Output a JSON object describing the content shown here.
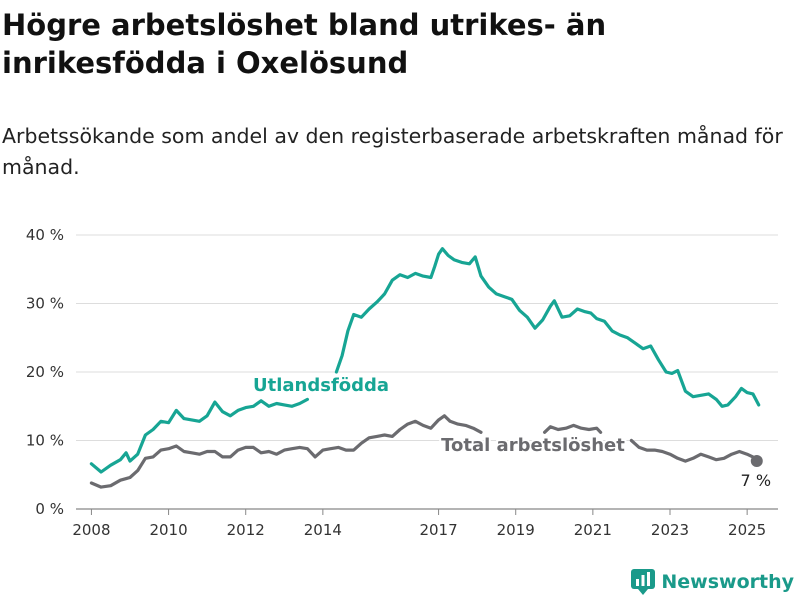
{
  "title": "Högre arbetslöshet bland utrikes- än inrikesfödda i Oxelösund",
  "subtitle": "Arbetssökande som andel av den registerbaserade arbetskraften månad för månad.",
  "brand": {
    "name": "Newsworthy",
    "color": "#1a9a8a"
  },
  "colors": {
    "utlandsfodda": "#17a594",
    "total": "#6b6b6f"
  },
  "chart_data": {
    "type": "line",
    "ylim": [
      0,
      40
    ],
    "xlim": [
      2007.6,
      2025.8
    ],
    "y_ticks": [
      0,
      10,
      20,
      30,
      40
    ],
    "y_tick_labels": [
      "0 %",
      "10 %",
      "20 %",
      "30 %",
      "40 %"
    ],
    "x_ticks": [
      2008,
      2010,
      2012,
      2014,
      2017,
      2019,
      2021,
      2023,
      2025
    ],
    "x_tick_labels": [
      "2008",
      "2010",
      "2012",
      "2014",
      "2017",
      "2019",
      "2021",
      "2023",
      "2025"
    ],
    "grid": true,
    "series": [
      {
        "name": "Utlandsfödda",
        "color": "#17a594",
        "points": [
          [
            2008.0,
            6.6
          ],
          [
            2008.25,
            5.4
          ],
          [
            2008.5,
            6.4
          ],
          [
            2008.75,
            7.2
          ],
          [
            2008.9,
            8.2
          ],
          [
            2009.0,
            7.0
          ],
          [
            2009.2,
            8.0
          ],
          [
            2009.4,
            10.8
          ],
          [
            2009.6,
            11.6
          ],
          [
            2009.8,
            12.8
          ],
          [
            2010.0,
            12.6
          ],
          [
            2010.2,
            14.4
          ],
          [
            2010.4,
            13.2
          ],
          [
            2010.6,
            13.0
          ],
          [
            2010.8,
            12.8
          ],
          [
            2011.0,
            13.6
          ],
          [
            2011.2,
            15.6
          ],
          [
            2011.4,
            14.2
          ],
          [
            2011.6,
            13.6
          ],
          [
            2011.8,
            14.4
          ],
          [
            2012.0,
            14.8
          ],
          [
            2012.2,
            15.0
          ],
          [
            2012.4,
            15.8
          ],
          [
            2012.6,
            15.0
          ],
          [
            2012.8,
            15.4
          ],
          [
            2013.0,
            15.2
          ],
          [
            2013.2,
            15.0
          ],
          [
            2013.4,
            15.4
          ],
          [
            2013.6,
            16.0
          ],
          null,
          [
            2014.35,
            20.0
          ],
          [
            2014.5,
            22.4
          ],
          [
            2014.65,
            26.0
          ],
          [
            2014.8,
            28.4
          ],
          [
            2015.0,
            28.0
          ],
          [
            2015.2,
            29.2
          ],
          [
            2015.4,
            30.2
          ],
          [
            2015.6,
            31.4
          ],
          [
            2015.8,
            33.4
          ],
          [
            2016.0,
            34.2
          ],
          [
            2016.2,
            33.8
          ],
          [
            2016.4,
            34.4
          ],
          [
            2016.6,
            34.0
          ],
          [
            2016.8,
            33.8
          ],
          [
            2016.9,
            35.4
          ],
          [
            2017.0,
            37.2
          ],
          [
            2017.1,
            38.0
          ],
          [
            2017.25,
            37.0
          ],
          [
            2017.4,
            36.4
          ],
          [
            2017.6,
            36.0
          ],
          [
            2017.8,
            35.8
          ],
          [
            2017.95,
            36.8
          ],
          [
            2018.1,
            34.0
          ],
          [
            2018.3,
            32.4
          ],
          [
            2018.5,
            31.4
          ],
          [
            2018.7,
            31.0
          ],
          [
            2018.9,
            30.6
          ],
          [
            2019.1,
            29.0
          ],
          [
            2019.3,
            28.0
          ],
          [
            2019.5,
            26.4
          ],
          [
            2019.7,
            27.6
          ],
          [
            2019.9,
            29.6
          ],
          [
            2020.0,
            30.4
          ],
          [
            2020.2,
            28.0
          ],
          [
            2020.4,
            28.2
          ],
          [
            2020.6,
            29.2
          ],
          [
            2020.8,
            28.8
          ],
          [
            2020.95,
            28.6
          ],
          [
            2021.1,
            27.8
          ],
          [
            2021.3,
            27.4
          ],
          [
            2021.5,
            26.0
          ],
          [
            2021.7,
            25.4
          ],
          [
            2021.9,
            25.0
          ],
          [
            2022.1,
            24.2
          ],
          [
            2022.3,
            23.4
          ],
          [
            2022.5,
            23.8
          ],
          [
            2022.7,
            21.8
          ],
          [
            2022.9,
            20.0
          ],
          [
            2023.05,
            19.8
          ],
          [
            2023.2,
            20.2
          ],
          [
            2023.4,
            17.2
          ],
          [
            2023.6,
            16.4
          ],
          [
            2023.8,
            16.6
          ],
          [
            2024.0,
            16.8
          ],
          [
            2024.2,
            16.0
          ],
          [
            2024.35,
            15.0
          ],
          [
            2024.5,
            15.2
          ],
          [
            2024.7,
            16.4
          ],
          [
            2024.85,
            17.6
          ],
          [
            2025.0,
            17.0
          ],
          [
            2025.15,
            16.8
          ],
          [
            2025.3,
            15.2
          ]
        ]
      },
      {
        "name": "Total arbetslöshet",
        "color": "#6b6b6f",
        "points": [
          [
            2008.0,
            3.8
          ],
          [
            2008.25,
            3.2
          ],
          [
            2008.5,
            3.4
          ],
          [
            2008.75,
            4.2
          ],
          [
            2009.0,
            4.6
          ],
          [
            2009.2,
            5.6
          ],
          [
            2009.4,
            7.4
          ],
          [
            2009.6,
            7.6
          ],
          [
            2009.8,
            8.6
          ],
          [
            2010.0,
            8.8
          ],
          [
            2010.2,
            9.2
          ],
          [
            2010.4,
            8.4
          ],
          [
            2010.6,
            8.2
          ],
          [
            2010.8,
            8.0
          ],
          [
            2011.0,
            8.4
          ],
          [
            2011.2,
            8.4
          ],
          [
            2011.4,
            7.6
          ],
          [
            2011.6,
            7.6
          ],
          [
            2011.8,
            8.6
          ],
          [
            2012.0,
            9.0
          ],
          [
            2012.2,
            9.0
          ],
          [
            2012.4,
            8.2
          ],
          [
            2012.6,
            8.4
          ],
          [
            2012.8,
            8.0
          ],
          [
            2013.0,
            8.6
          ],
          [
            2013.2,
            8.8
          ],
          [
            2013.4,
            9.0
          ],
          [
            2013.6,
            8.8
          ],
          [
            2013.8,
            7.6
          ],
          [
            2014.0,
            8.6
          ],
          [
            2014.2,
            8.8
          ],
          [
            2014.4,
            9.0
          ],
          [
            2014.6,
            8.6
          ],
          [
            2014.8,
            8.6
          ],
          [
            2015.0,
            9.6
          ],
          [
            2015.2,
            10.4
          ],
          [
            2015.4,
            10.6
          ],
          [
            2015.6,
            10.8
          ],
          [
            2015.8,
            10.6
          ],
          [
            2016.0,
            11.6
          ],
          [
            2016.2,
            12.4
          ],
          [
            2016.4,
            12.8
          ],
          [
            2016.6,
            12.2
          ],
          [
            2016.8,
            11.8
          ],
          [
            2017.0,
            13.0
          ],
          [
            2017.15,
            13.6
          ],
          [
            2017.3,
            12.8
          ],
          [
            2017.5,
            12.4
          ],
          [
            2017.7,
            12.2
          ],
          [
            2017.9,
            11.8
          ],
          [
            2018.1,
            11.2
          ],
          null,
          [
            2019.75,
            11.2
          ],
          [
            2019.9,
            12.0
          ],
          [
            2020.1,
            11.6
          ],
          [
            2020.3,
            11.8
          ],
          [
            2020.5,
            12.2
          ],
          [
            2020.7,
            11.8
          ],
          [
            2020.9,
            11.6
          ],
          [
            2021.1,
            11.8
          ],
          [
            2021.2,
            11.2
          ],
          null,
          [
            2022.0,
            10.0
          ],
          [
            2022.2,
            9.0
          ],
          [
            2022.4,
            8.6
          ],
          [
            2022.6,
            8.6
          ],
          [
            2022.8,
            8.4
          ],
          [
            2023.0,
            8.0
          ],
          [
            2023.2,
            7.4
          ],
          [
            2023.4,
            7.0
          ],
          [
            2023.6,
            7.4
          ],
          [
            2023.8,
            8.0
          ],
          [
            2024.0,
            7.6
          ],
          [
            2024.2,
            7.2
          ],
          [
            2024.4,
            7.4
          ],
          [
            2024.6,
            8.0
          ],
          [
            2024.8,
            8.4
          ],
          [
            2025.0,
            8.0
          ],
          [
            2025.15,
            7.6
          ],
          [
            2025.25,
            7.0
          ]
        ]
      }
    ],
    "series_labels": [
      "Utlandsfödda",
      "Total arbetslöshet"
    ],
    "end_point": {
      "x": 2025.25,
      "y": 7.0,
      "label": "7 %"
    }
  }
}
